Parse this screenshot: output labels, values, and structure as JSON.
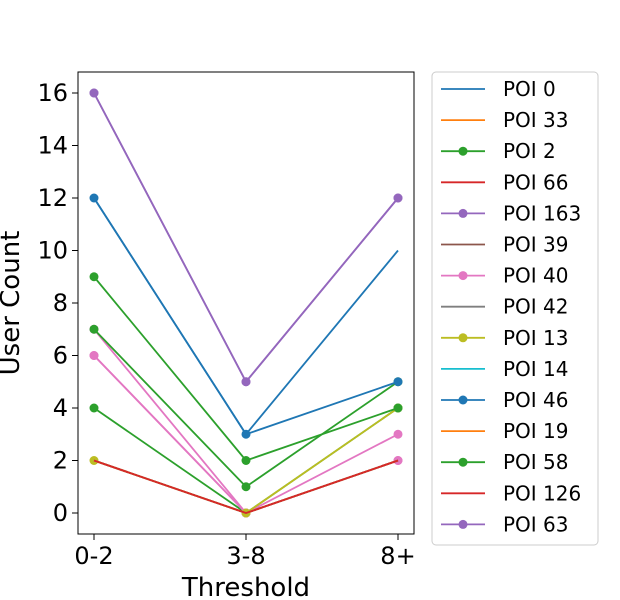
{
  "chart_data": {
    "type": "line",
    "title": "",
    "xlabel": "Threshold",
    "ylabel": "User Count",
    "categories": [
      "0-2",
      "3-8",
      "8+"
    ],
    "ylim": [
      -0.8,
      16.8
    ],
    "yticks": [
      0,
      2,
      4,
      6,
      8,
      10,
      12,
      14,
      16
    ],
    "grid": false,
    "legend_position": "outside-right",
    "series": [
      {
        "name": "POI 0",
        "values": [
          12,
          3,
          10
        ],
        "color": "#1f77b4",
        "marker": false
      },
      {
        "name": "POI 33",
        "values": [
          2,
          0,
          2
        ],
        "color": "#ff7f0e",
        "marker": false
      },
      {
        "name": "POI 2",
        "values": [
          7,
          1,
          5
        ],
        "color": "#2ca02c",
        "marker": true
      },
      {
        "name": "POI 66",
        "values": [
          2,
          0,
          2
        ],
        "color": "#d62728",
        "marker": false
      },
      {
        "name": "POI 163",
        "values": [
          16,
          5,
          12
        ],
        "color": "#9467bd",
        "marker": true
      },
      {
        "name": "POI 39",
        "values": [
          2,
          0,
          2
        ],
        "color": "#8c564b",
        "marker": false
      },
      {
        "name": "POI 40",
        "values": [
          6,
          0,
          3
        ],
        "color": "#e377c2",
        "marker": true
      },
      {
        "name": "POI 42",
        "values": [
          2,
          0,
          2
        ],
        "color": "#7f7f7f",
        "marker": false
      },
      {
        "name": "POI 13",
        "values": [
          2,
          0,
          4
        ],
        "color": "#bcbd22",
        "marker": true
      },
      {
        "name": "POI 14",
        "values": [
          2,
          0,
          2
        ],
        "color": "#17becf",
        "marker": false
      },
      {
        "name": "POI 46",
        "values": [
          12,
          3,
          5
        ],
        "color": "#1f77b4",
        "marker": true
      },
      {
        "name": "POI 19",
        "values": [
          2,
          0,
          2
        ],
        "color": "#ff7f0e",
        "marker": false
      },
      {
        "name": "POI 58",
        "values": [
          9,
          2,
          4
        ],
        "color": "#2ca02c",
        "marker": true
      },
      {
        "name": "POI 126",
        "values": [
          2,
          0,
          2
        ],
        "color": "#d62728",
        "marker": false
      },
      {
        "name": "POI 63",
        "values": [
          16,
          5,
          12
        ],
        "color": "#9467bd",
        "marker": true
      }
    ],
    "extra_series": [
      {
        "name": "",
        "values": [
          4,
          0,
          4
        ],
        "color": "#2ca02c",
        "marker": true
      },
      {
        "name": "",
        "values": [
          6,
          0,
          2
        ],
        "color": "#e377c2",
        "marker": true
      },
      {
        "name": "",
        "values": [
          7,
          0,
          2
        ],
        "color": "#e377c2",
        "marker": true
      }
    ]
  }
}
